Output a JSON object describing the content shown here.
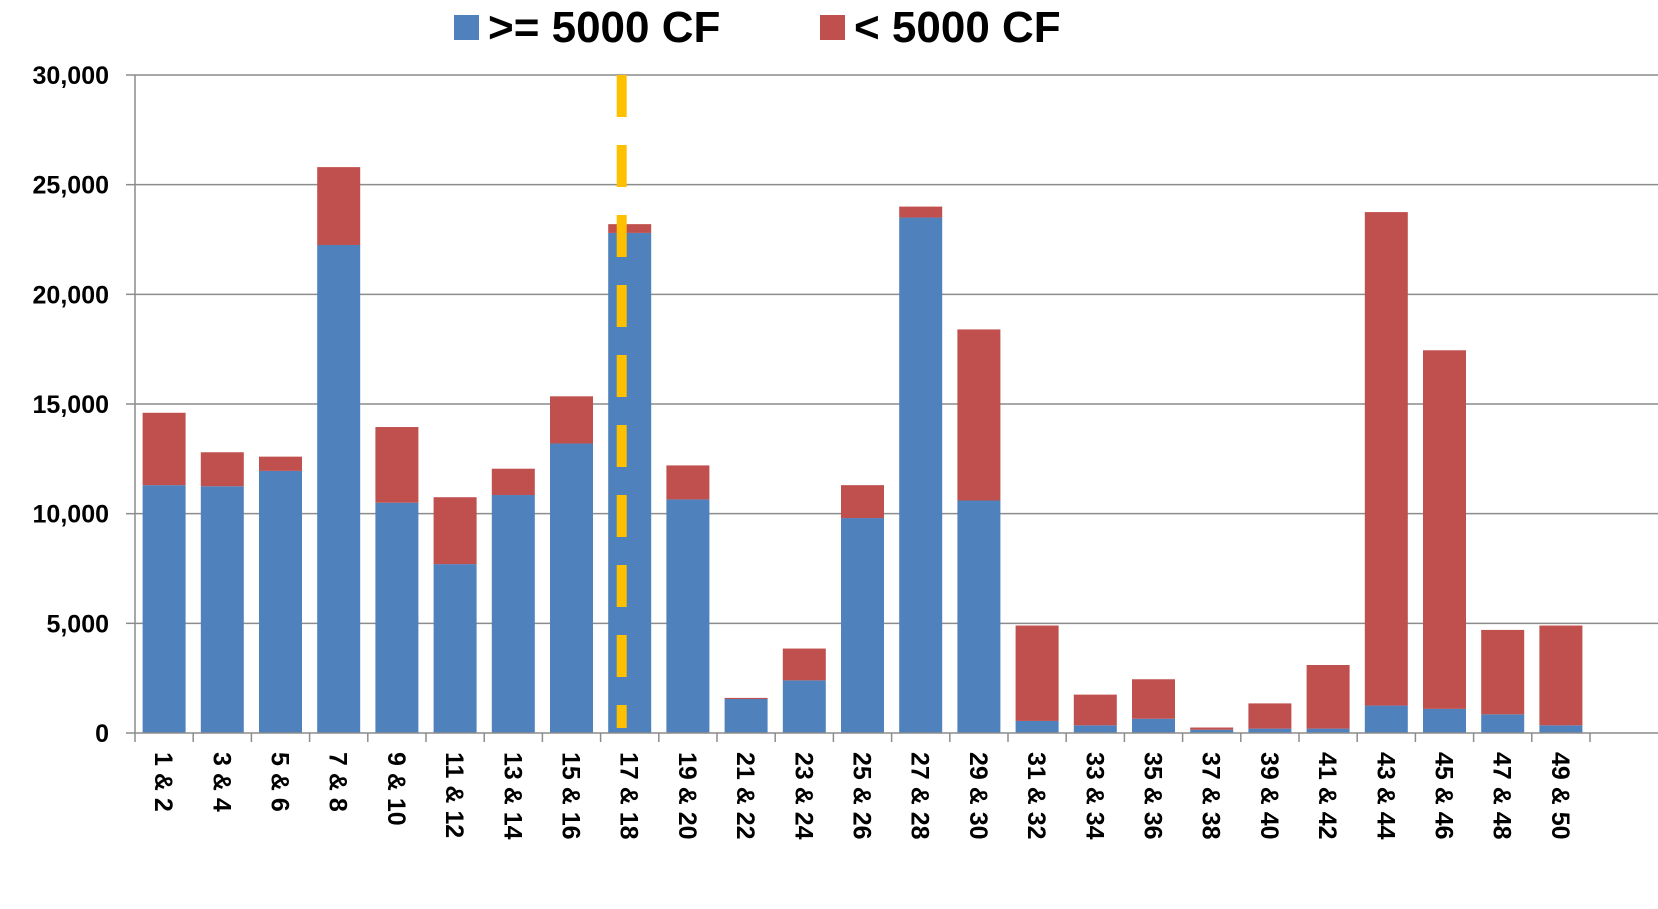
{
  "chart_data": {
    "type": "bar",
    "stacked": true,
    "title": "",
    "xlabel": "",
    "ylabel": "",
    "ylim": [
      0,
      30000
    ],
    "y_ticks": [
      0,
      5000,
      10000,
      15000,
      20000,
      25000,
      30000
    ],
    "y_tick_labels": [
      "0",
      "5,000",
      "10,000",
      "15,000",
      "20,000",
      "25,000",
      "30,000"
    ],
    "grid": true,
    "legend_position": "top",
    "categories": [
      "1 & 2",
      "3 & 4",
      "5 & 6",
      "7 & 8",
      "9 & 10",
      "11 & 12",
      "13 & 14",
      "15 & 16",
      "17 & 18",
      "19 & 20",
      "21 & 22",
      "23 & 24",
      "25 & 26",
      "27 & 28",
      "29 & 30",
      "31 & 32",
      "33 & 34",
      "35 & 36",
      "37 & 38",
      "39 & 40",
      "41 & 42",
      "43 & 44",
      "45 & 46",
      "47 & 48",
      "49 & 50"
    ],
    "series": [
      {
        "name": ">= 5000 CF",
        "color": "#4F81BD",
        "values": [
          11300,
          11250,
          11950,
          22250,
          10500,
          7700,
          10850,
          13200,
          22800,
          10650,
          1550,
          2400,
          9800,
          23500,
          10600,
          550,
          350,
          650,
          150,
          200,
          200,
          1250,
          1100,
          850,
          350
        ]
      },
      {
        "name": "< 5000 CF",
        "color": "#C0504D",
        "values": [
          3300,
          1550,
          650,
          3550,
          3450,
          3050,
          1200,
          2150,
          400,
          1550,
          50,
          1450,
          1500,
          500,
          7800,
          4350,
          1400,
          1800,
          100,
          1150,
          2900,
          22500,
          16350,
          3850,
          4550
        ]
      }
    ],
    "reference_line": {
      "category": "17 & 18",
      "style": "dashed",
      "color": "#FFC000"
    }
  }
}
